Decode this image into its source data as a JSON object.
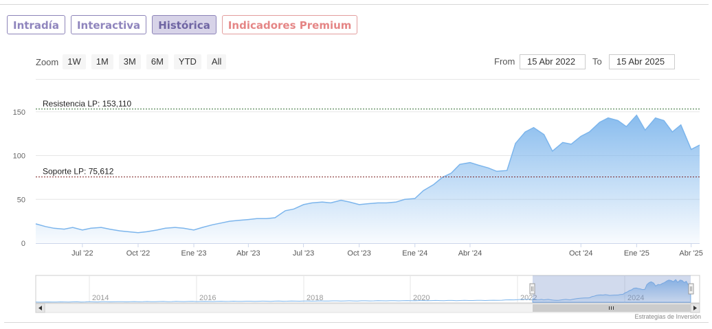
{
  "tabs": [
    {
      "label": "Intradía"
    },
    {
      "label": "Interactiva"
    },
    {
      "label": "Histórica"
    },
    {
      "label": "Indicadores Premium"
    }
  ],
  "zoom": {
    "label": "Zoom",
    "buttons": [
      "1W",
      "1M",
      "3M",
      "6M",
      "YTD",
      "All"
    ]
  },
  "range": {
    "from_label": "From",
    "from_value": "15 Abr 2022",
    "to_label": "To",
    "to_value": "15 Abr 2025"
  },
  "credit": "Estrategias de Inversión",
  "colors": {
    "tab_border": "#8c83b8",
    "tab_active_bg": "#d7d3e8",
    "premium": "#e58686",
    "series": "#7cb5ec"
  },
  "chart_data": {
    "type": "area",
    "title": "",
    "xlabel": "",
    "ylabel": "",
    "ylim": [
      0,
      160
    ],
    "yticks": [
      0,
      50,
      100,
      150
    ],
    "grid": true,
    "xtick_labels": [
      "Jul '22",
      "Oct '22",
      "Ene '23",
      "Abr '23",
      "Jul '23",
      "Oct '23",
      "Ene '24",
      "Abr '24",
      "Oct '24",
      "Ene '25",
      "Abr '25"
    ],
    "xtick_dates": [
      "2022-07-01",
      "2022-10-01",
      "2023-01-01",
      "2023-04-01",
      "2023-07-01",
      "2023-10-01",
      "2024-01-01",
      "2024-04-01",
      "2024-10-01",
      "2025-01-01",
      "2025-04-01"
    ],
    "hlines": [
      {
        "label": "Resistencia LP: 153,110",
        "value": 153.11,
        "color": "#2e6b2e"
      },
      {
        "label": "Soporte LP: 75,612",
        "value": 75.612,
        "color": "#7a1f1f"
      }
    ],
    "series": [
      {
        "x": [
          "2022-04-15",
          "2022-05-01",
          "2022-05-15",
          "2022-06-01",
          "2022-06-15",
          "2022-07-01",
          "2022-07-15",
          "2022-08-01",
          "2022-08-15",
          "2022-09-01",
          "2022-09-15",
          "2022-10-01",
          "2022-10-15",
          "2022-11-01",
          "2022-11-15",
          "2022-12-01",
          "2022-12-15",
          "2023-01-01",
          "2023-01-15",
          "2023-02-01",
          "2023-02-15",
          "2023-03-01",
          "2023-03-15",
          "2023-04-01",
          "2023-04-15",
          "2023-05-01",
          "2023-05-15",
          "2023-06-01",
          "2023-06-15",
          "2023-07-01",
          "2023-07-15",
          "2023-08-01",
          "2023-08-15",
          "2023-09-01",
          "2023-09-15",
          "2023-10-01",
          "2023-10-15",
          "2023-11-01",
          "2023-11-15",
          "2023-12-01",
          "2023-12-15",
          "2024-01-01",
          "2024-01-15",
          "2024-02-01",
          "2024-02-15",
          "2024-03-01",
          "2024-03-15",
          "2024-04-01",
          "2024-04-15",
          "2024-05-01",
          "2024-05-15",
          "2024-06-01",
          "2024-06-15",
          "2024-07-01",
          "2024-07-15",
          "2024-08-01",
          "2024-08-15",
          "2024-09-01",
          "2024-09-15",
          "2024-10-01",
          "2024-10-15",
          "2024-11-01",
          "2024-11-15",
          "2024-12-01",
          "2024-12-15",
          "2025-01-01",
          "2025-01-15",
          "2025-02-01",
          "2025-02-15",
          "2025-03-01",
          "2025-03-15",
          "2025-04-01",
          "2025-04-15"
        ],
        "values": [
          22,
          19,
          17,
          16,
          18,
          15,
          17,
          18,
          16,
          14,
          13,
          12,
          13,
          15,
          17,
          18,
          17,
          15,
          18,
          21,
          23,
          25,
          26,
          27,
          28,
          28,
          29,
          37,
          39,
          44,
          46,
          47,
          46,
          49,
          47,
          44,
          45,
          46,
          46,
          47,
          50,
          51,
          60,
          67,
          75,
          80,
          90,
          92,
          89,
          86,
          82,
          83,
          114,
          127,
          132,
          124,
          105,
          115,
          113,
          122,
          127,
          138,
          143,
          140,
          133,
          146,
          129,
          143,
          140,
          127,
          135,
          107,
          112
        ]
      }
    ]
  },
  "navigator": {
    "year_labels": [
      "2014",
      "2016",
      "2018",
      "2020",
      "2022",
      "2024"
    ]
  }
}
